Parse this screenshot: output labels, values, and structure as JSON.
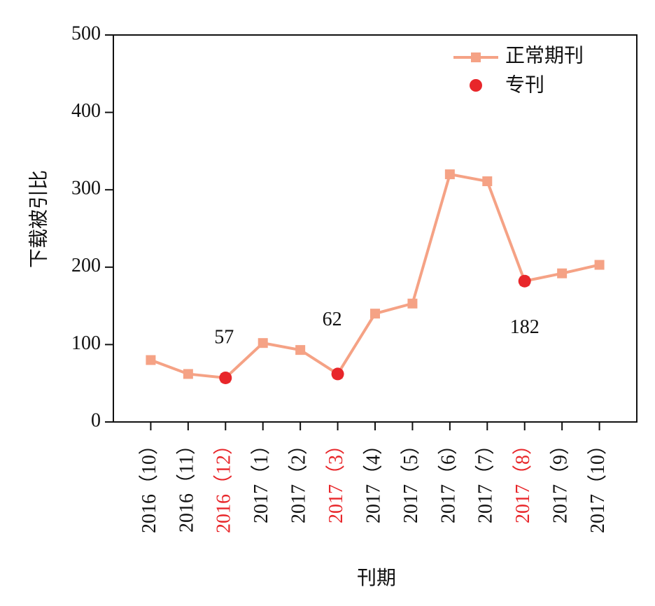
{
  "chart_data": {
    "type": "line",
    "x_label": "刊期",
    "y_label": "下载被引比",
    "categories": [
      "2016（10）",
      "2016（11）",
      "2016（12）",
      "2017（1）",
      "2017（2）",
      "2017（3）",
      "2017（4）",
      "2017（5）",
      "2017（6）",
      "2017（7）",
      "2017（8）",
      "2017（9）",
      "2017（10）"
    ],
    "series": [
      {
        "name": "正常期刊",
        "color": "#f5a285",
        "marker": "square",
        "values": [
          80,
          62,
          57,
          102,
          93,
          62,
          140,
          153,
          320,
          311,
          182,
          192,
          203
        ]
      },
      {
        "name": "专刊",
        "color": "#e8262a",
        "marker": "circle",
        "values": [
          null,
          null,
          57,
          null,
          null,
          62,
          null,
          null,
          null,
          null,
          182,
          null,
          null
        ]
      }
    ],
    "ylim": [
      0,
      500
    ],
    "yticks": [
      0,
      100,
      200,
      300,
      400,
      500
    ],
    "highlight_color": "#e8262a",
    "legend": "upper right",
    "grid": false
  }
}
